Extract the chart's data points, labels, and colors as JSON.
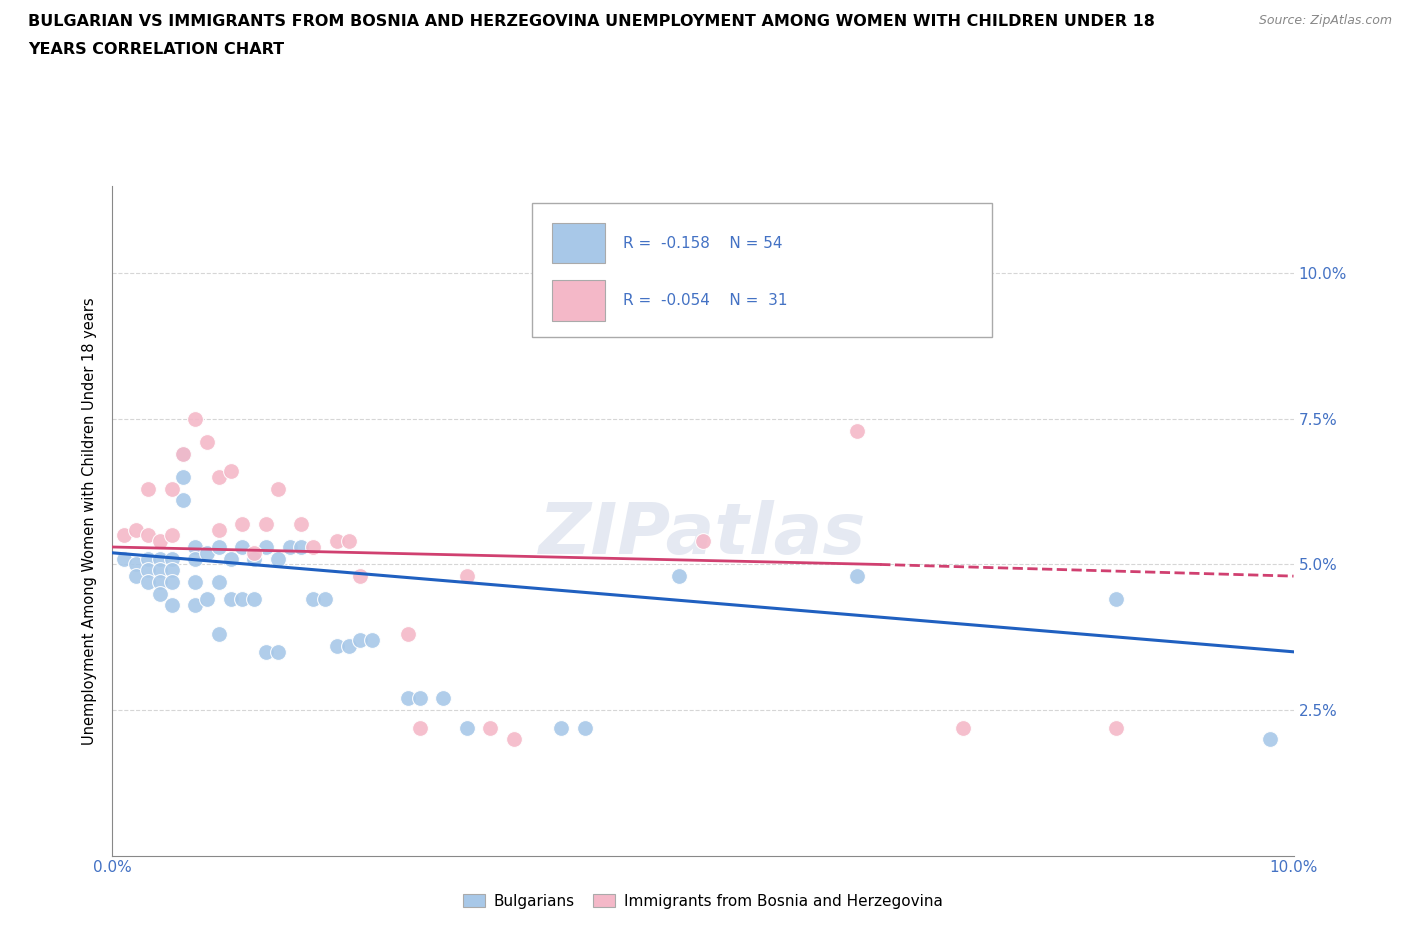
{
  "title_line1": "BULGARIAN VS IMMIGRANTS FROM BOSNIA AND HERZEGOVINA UNEMPLOYMENT AMONG WOMEN WITH CHILDREN UNDER 18",
  "title_line2": "YEARS CORRELATION CHART",
  "source": "Source: ZipAtlas.com",
  "ylabel": "Unemployment Among Women with Children Under 18 years",
  "xlim": [
    0,
    0.1
  ],
  "ylim": [
    0,
    0.115
  ],
  "blue_color": "#a8c8e8",
  "pink_color": "#f4b8c8",
  "blue_line_color": "#2060c0",
  "pink_line_color": "#d04070",
  "legend_label1": "Bulgarians",
  "legend_label2": "Immigrants from Bosnia and Herzegovina",
  "watermark": "ZIPatlas",
  "marker_size": 130,
  "blue_x": [
    0.001,
    0.002,
    0.002,
    0.003,
    0.003,
    0.003,
    0.004,
    0.004,
    0.004,
    0.004,
    0.005,
    0.005,
    0.005,
    0.005,
    0.006,
    0.006,
    0.006,
    0.007,
    0.007,
    0.007,
    0.007,
    0.008,
    0.008,
    0.009,
    0.009,
    0.009,
    0.01,
    0.01,
    0.011,
    0.011,
    0.012,
    0.012,
    0.013,
    0.013,
    0.014,
    0.014,
    0.015,
    0.016,
    0.017,
    0.018,
    0.019,
    0.02,
    0.021,
    0.022,
    0.025,
    0.026,
    0.028,
    0.03,
    0.038,
    0.04,
    0.048,
    0.063,
    0.085,
    0.098
  ],
  "blue_y": [
    0.051,
    0.05,
    0.048,
    0.051,
    0.049,
    0.047,
    0.051,
    0.049,
    0.047,
    0.045,
    0.051,
    0.049,
    0.047,
    0.043,
    0.069,
    0.065,
    0.061,
    0.053,
    0.051,
    0.047,
    0.043,
    0.052,
    0.044,
    0.053,
    0.047,
    0.038,
    0.051,
    0.044,
    0.053,
    0.044,
    0.051,
    0.044,
    0.053,
    0.035,
    0.051,
    0.035,
    0.053,
    0.053,
    0.044,
    0.044,
    0.036,
    0.036,
    0.037,
    0.037,
    0.027,
    0.027,
    0.027,
    0.022,
    0.022,
    0.022,
    0.048,
    0.048,
    0.044,
    0.02
  ],
  "pink_x": [
    0.001,
    0.002,
    0.003,
    0.003,
    0.004,
    0.005,
    0.005,
    0.006,
    0.007,
    0.008,
    0.009,
    0.009,
    0.01,
    0.011,
    0.012,
    0.013,
    0.014,
    0.016,
    0.017,
    0.019,
    0.02,
    0.021,
    0.025,
    0.026,
    0.03,
    0.032,
    0.034,
    0.05,
    0.063,
    0.072,
    0.085
  ],
  "pink_y": [
    0.055,
    0.056,
    0.055,
    0.063,
    0.054,
    0.063,
    0.055,
    0.069,
    0.075,
    0.071,
    0.065,
    0.056,
    0.066,
    0.057,
    0.052,
    0.057,
    0.063,
    0.057,
    0.053,
    0.054,
    0.054,
    0.048,
    0.038,
    0.022,
    0.048,
    0.022,
    0.02,
    0.054,
    0.073,
    0.022,
    0.022
  ]
}
